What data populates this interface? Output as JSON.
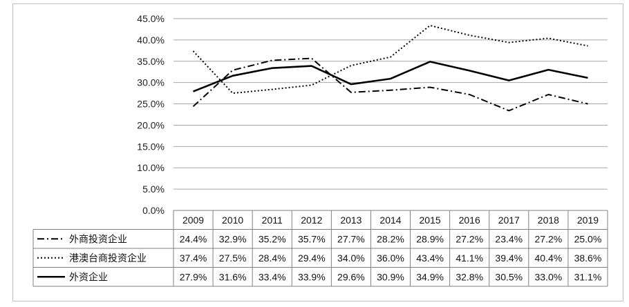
{
  "chart_data": {
    "type": "line",
    "categories": [
      "2009",
      "2010",
      "2011",
      "2012",
      "2013",
      "2014",
      "2015",
      "2016",
      "2017",
      "2018",
      "2019"
    ],
    "ylim": [
      0,
      45
    ],
    "yticks": [
      "0.0%",
      "5.0%",
      "10.0%",
      "15.0%",
      "20.0%",
      "25.0%",
      "30.0%",
      "35.0%",
      "40.0%",
      "45.0%"
    ],
    "grid": true,
    "legend": "data-table",
    "series": [
      {
        "name": "外商投资企业",
        "style": "dash-dot",
        "values": [
          24.4,
          32.9,
          35.2,
          35.7,
          27.7,
          28.2,
          28.9,
          27.2,
          23.4,
          27.2,
          25.0
        ],
        "labels": [
          "24.4%",
          "32.9%",
          "35.2%",
          "35.7%",
          "27.7%",
          "28.2%",
          "28.9%",
          "27.2%",
          "23.4%",
          "27.2%",
          "25.0%"
        ]
      },
      {
        "name": "港澳台商投资企业",
        "style": "dotted",
        "values": [
          37.4,
          27.5,
          28.4,
          29.4,
          34.0,
          36.0,
          43.4,
          41.1,
          39.4,
          40.4,
          38.6
        ],
        "labels": [
          "37.4%",
          "27.5%",
          "28.4%",
          "29.4%",
          "34.0%",
          "36.0%",
          "43.4%",
          "41.1%",
          "39.4%",
          "40.4%",
          "38.6%"
        ]
      },
      {
        "name": "外资企业",
        "style": "solid",
        "values": [
          27.9,
          31.6,
          33.4,
          33.9,
          29.6,
          30.9,
          34.9,
          32.8,
          30.5,
          33.0,
          31.1
        ],
        "labels": [
          "27.9%",
          "31.6%",
          "33.4%",
          "33.9%",
          "29.6%",
          "30.9%",
          "34.9%",
          "32.8%",
          "30.5%",
          "33.0%",
          "31.1%"
        ]
      }
    ],
    "colors": {
      "line": "#000000",
      "grid": "#a6a6a6",
      "table_border": "#7f7f7f"
    }
  }
}
